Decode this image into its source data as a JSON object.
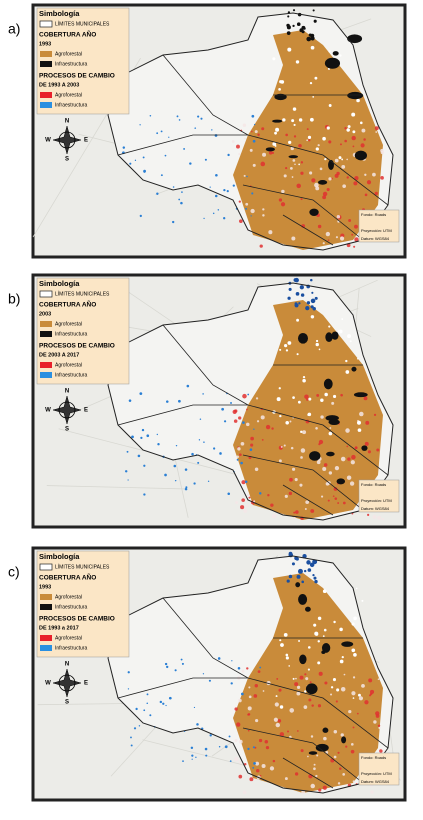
{
  "panels": [
    {
      "label": "a)",
      "legend": {
        "title": "Simbología",
        "boundaries": "LÍMITES MUNICIPALES",
        "cover_title": "COBERTURA AÑO",
        "cover_year": "1993",
        "cover_items": [
          "Agroforestal",
          "Infraestructura"
        ],
        "change_title": "PROCESOS DE CAMBIO",
        "change_period": "DE 1993 A 2003",
        "change_items": [
          "Agroforestal",
          "Infraestructura"
        ]
      },
      "compass": [
        "N",
        "W",
        "E",
        "S"
      ],
      "notes": [
        "Fondo: Roads",
        "Proyección: UTM",
        "Datum: WGS84"
      ]
    },
    {
      "label": "b)",
      "legend": {
        "title": "Simbología",
        "boundaries": "LÍMITES MUNICIPALES",
        "cover_title": "COBERTURA AÑO",
        "cover_year": "2003",
        "cover_items": [
          "Agroforestal",
          "Infraestructura"
        ],
        "change_title": "PROCESOS DE CAMBIO",
        "change_period": "DE 2003 A 2017",
        "change_items": [
          "Agroforestal",
          "Infraestructura"
        ]
      },
      "compass": [
        "N",
        "W",
        "E",
        "S"
      ],
      "notes": [
        "Fondo: Roads",
        "Proyección: UTM",
        "Datum: WGS84"
      ]
    },
    {
      "label": "c)",
      "legend": {
        "title": "Simbología",
        "boundaries": "LÍMITES MUNICIPALES",
        "cover_title": "COBERTURA AÑO",
        "cover_year": "1993",
        "cover_items": [
          "Agroforestal",
          "Infraestructura"
        ],
        "change_title": "PROCESOS DE CAMBIO",
        "change_period": "DE 1993 a 2017",
        "change_items": [
          "Agroforestal",
          "Infraestructura"
        ]
      },
      "compass": [
        "N",
        "W",
        "E",
        "S"
      ],
      "notes": [
        "Fondo: Roads",
        "Proyección: UTM",
        "Datum: WGS84"
      ]
    }
  ]
}
